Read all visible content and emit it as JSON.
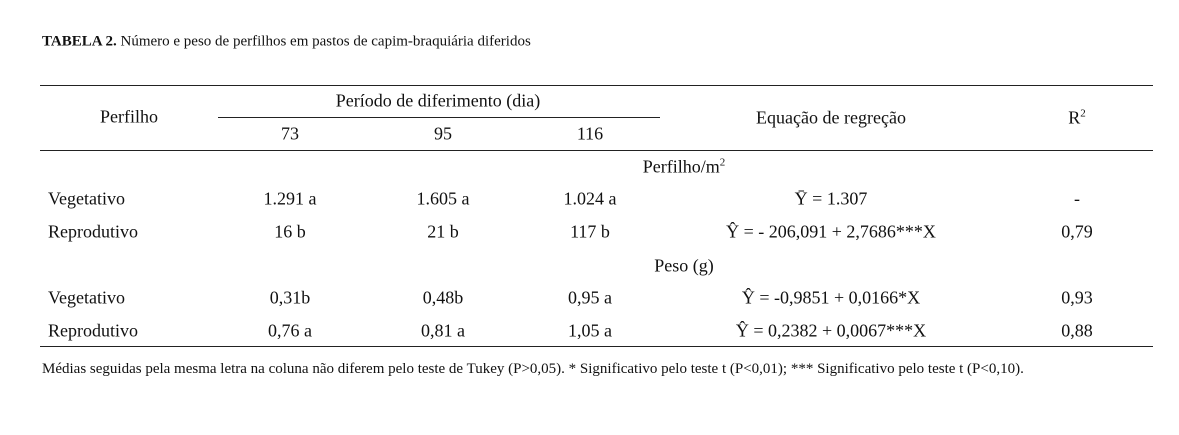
{
  "title": {
    "label": "TABELA 2.",
    "text": "Número e peso de perfilhos em pastos de capim-braquiária diferidos"
  },
  "table": {
    "header": {
      "row_label": "Perfilho",
      "period": "Período de diferimento (dia)",
      "days": [
        "73",
        "95",
        "116"
      ],
      "equation": "Equação de regreção",
      "r2": {
        "base": "R",
        "sup": "2"
      }
    },
    "sections": [
      {
        "title": {
          "base": "Perfilho/m",
          "sup": "2"
        },
        "rows": [
          [
            "Vegetativo",
            "1.291 a",
            "1.605 a",
            "1.024 a",
            "Ȳ  = 1.307",
            "-"
          ],
          [
            "Reprodutivo",
            "16 b",
            "21 b",
            "117 b",
            "Ŷ = - 206,091 + 2,7686***X",
            "0,79"
          ]
        ]
      },
      {
        "title": {
          "base": "Peso (g)"
        },
        "rows": [
          [
            "Vegetativo",
            "0,31b",
            "0,48b",
            "0,95 a",
            "Ŷ = -0,9851 + 0,0166*X",
            "0,93"
          ],
          [
            "Reprodutivo",
            "0,76 a",
            "0,81 a",
            "1,05 a",
            "Ŷ = 0,2382 + 0,0067***X",
            "0,88"
          ]
        ]
      }
    ]
  },
  "footnote": "Médias seguidas pela mesma letra na coluna não diferem pelo teste de Tukey (P>0,05). * Significativo pelo teste t (P<0,01); *** Significativo pelo teste t (P<0,10)."
}
